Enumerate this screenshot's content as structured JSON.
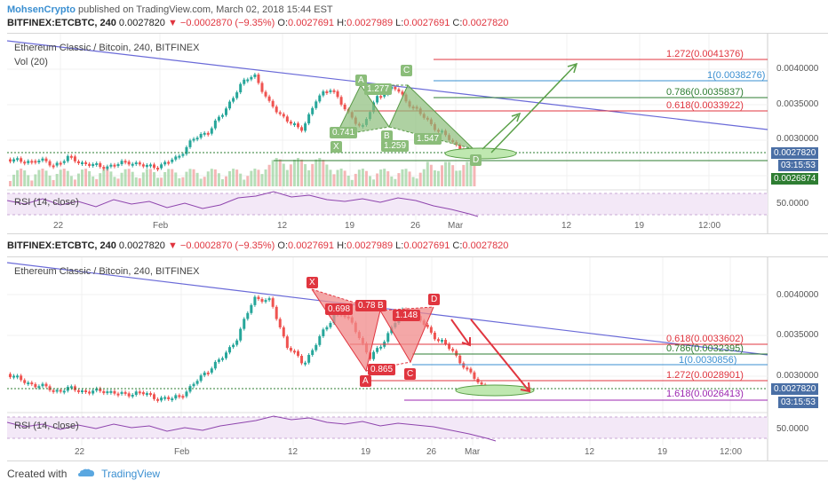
{
  "publisher": {
    "author": "MohsenCrypto",
    "text": " published on TradingView.com, March 02, 2018 15:44 EST"
  },
  "ticker": {
    "symbol": "BITFINEX:ETCBTC, 240",
    "last": "0.0027820",
    "change": "▼ −0.0002870 (−9.35%)",
    "o_label": "O:",
    "o_value": "0.0027691",
    "h_label": "H:",
    "h_value": "0.0027989",
    "l_label": "L:",
    "l_value": "0.0027691",
    "c_label": "C:",
    "c_value": "0.0027820"
  },
  "chart1": {
    "title": "Ethereum Classic / Bitcoin, 240, BITFINEX",
    "vol_label": "Vol (20)",
    "rsi_label": "RSI (14, close)",
    "rsi_value": "50.0000",
    "y_ticks": [
      "0.0040000",
      "0.0035000",
      "0.0030000"
    ],
    "price_tags": [
      {
        "text": "0.0027820",
        "color": "#4a6fa5"
      },
      {
        "text": "03:15:53",
        "color": "#4a6fa5"
      },
      {
        "text": "0.0026874",
        "color": "#2e7d32"
      }
    ],
    "x_labels": [
      "22",
      "Feb",
      "12",
      "19",
      "26",
      "Mar",
      "12",
      "19",
      "12:00"
    ],
    "fib_levels": [
      {
        "text": "1.272(0.0041376)",
        "color": "#e0353f"
      },
      {
        "text": "1(0.0038276)",
        "color": "#3a8fd1"
      },
      {
        "text": "0.786(0.0035837)",
        "color": "#2e7d32"
      },
      {
        "text": "0.618(0.0033922)",
        "color": "#e0353f"
      }
    ],
    "pattern_points": [
      "X",
      "A",
      "B",
      "C",
      "D"
    ],
    "ratios": [
      "1.277",
      "0.741",
      "1.259",
      "1.547"
    ]
  },
  "chart2": {
    "title": "Ethereum Classic / Bitcoin, 240, BITFINEX",
    "rsi_label": "RSI (14, close)",
    "rsi_value": "50.0000",
    "y_ticks": [
      "0.0040000",
      "0.0035000",
      "0.0030000"
    ],
    "price_tags": [
      {
        "text": "0.0027820",
        "color": "#4a6fa5"
      },
      {
        "text": "03:15:53",
        "color": "#4a6fa5"
      }
    ],
    "x_labels": [
      "22",
      "Feb",
      "12",
      "19",
      "26",
      "Mar",
      "12",
      "19",
      "12:00"
    ],
    "fib_levels": [
      {
        "text": "0.618(0.0033602)",
        "color": "#e0353f"
      },
      {
        "text": "0.786(0.0032395)",
        "color": "#2e7d32"
      },
      {
        "text": "1(0.0030856)",
        "color": "#3a8fd1"
      },
      {
        "text": "1.272(0.0028901)",
        "color": "#e0353f"
      },
      {
        "text": "1.618(0.0026413)",
        "color": "#9c27b0"
      }
    ],
    "pattern_points": [
      "X",
      "A",
      "B",
      "C",
      "D"
    ],
    "ratios": [
      "0.698",
      "0.78",
      "1.148",
      "0.865"
    ]
  },
  "footer": {
    "created_with": "Created with",
    "brand": "TradingView"
  }
}
